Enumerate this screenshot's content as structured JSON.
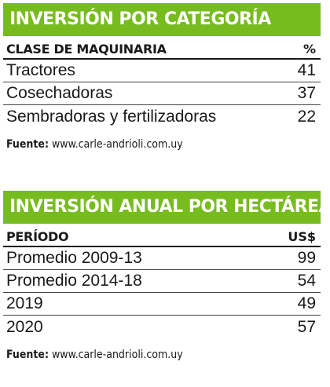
{
  "investment_by_category": {
    "title": "INVERSIÓN POR CATEGORÍA",
    "columns": [
      "CLASE DE MAQUINARIA",
      "%"
    ],
    "rows": [
      {
        "label": "Tractores",
        "value": "41"
      },
      {
        "label": "Cosechadoras",
        "value": "37"
      },
      {
        "label": "Sembradoras y fertilizadoras",
        "value": "22"
      }
    ],
    "source_label": "Fuente:",
    "source_value": "www.carle-andrioli.com.uy"
  },
  "annual_investment_per_hectare": {
    "title": "INVERSIÓN ANUAL POR HECTÁREA",
    "columns": [
      "PERÍODO",
      "US$"
    ],
    "rows": [
      {
        "label": "Promedio 2009-13",
        "value": "99"
      },
      {
        "label": "Promedio 2014-18",
        "value": "54"
      },
      {
        "label": "2019",
        "value": "49"
      },
      {
        "label": "2020",
        "value": "57"
      }
    ],
    "source_label": "Fuente:",
    "source_value": "www.carle-andrioli.com.uy"
  },
  "colors": {
    "header_background": "#77bc1f",
    "header_text": "#ffffff",
    "text": "#1a1a1a"
  }
}
